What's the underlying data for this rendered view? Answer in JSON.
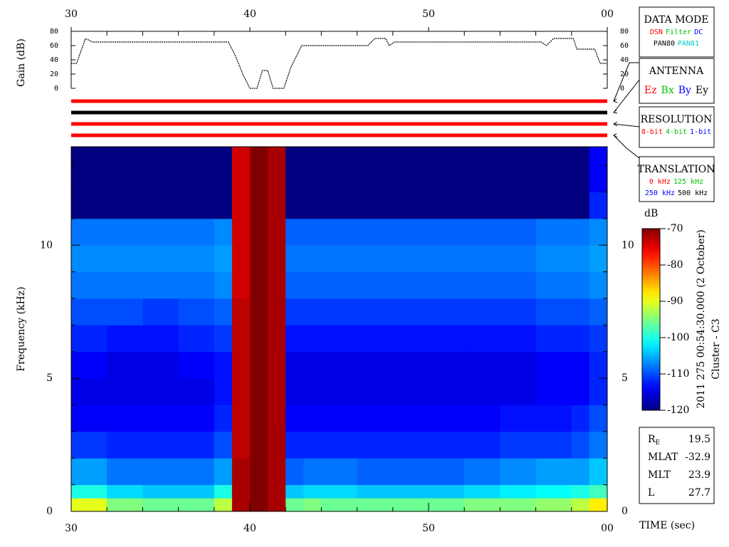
{
  "chart_data": [
    {
      "type": "line",
      "ylabel": "Gain (dB)",
      "color": "#000000",
      "x": [
        30,
        30.3,
        30.8,
        31.2,
        38.8,
        39.2,
        39.6,
        40.0,
        40.4,
        40.7,
        41.0,
        41.3,
        41.5,
        41.9,
        42.3,
        42.9,
        46.6,
        47.0,
        47.6,
        47.8,
        48.1,
        56.3,
        56.6,
        57.0,
        58.1,
        58.3,
        59.3,
        59.6,
        60
      ],
      "values": [
        35,
        35,
        70,
        65,
        65,
        45,
        20,
        0,
        0,
        25,
        25,
        0,
        0,
        0,
        30,
        60,
        60,
        70,
        70,
        60,
        65,
        65,
        60,
        70,
        70,
        55,
        55,
        35,
        35
      ],
      "xlim": [
        30,
        60
      ],
      "xticks": [
        30,
        40,
        50,
        {
          "value": 60,
          "label": "00"
        }
      ],
      "ylim": [
        0,
        80
      ],
      "yticks": [
        0,
        20,
        40,
        60,
        80
      ]
    },
    {
      "type": "heatmap",
      "xlabel": "TIME (sec)",
      "ylabel": "Frequency (kHz)",
      "xlim": [
        30,
        60
      ],
      "xticks": [
        30,
        40,
        50,
        {
          "value": 60,
          "label": "00"
        }
      ],
      "xminorticks": [
        32,
        34,
        36,
        38,
        42,
        44,
        46,
        48,
        52,
        54,
        56,
        58
      ],
      "ylim": [
        0,
        13.7
      ],
      "yticks": [
        0,
        5,
        10
      ],
      "yminorticks": [
        1,
        2,
        3,
        4,
        6,
        7,
        8,
        9,
        11,
        12,
        13
      ],
      "colorbar_label": "dB",
      "clim": [
        -120,
        -70
      ],
      "cticks": [
        -70,
        -80,
        -90,
        -100,
        -110,
        -120
      ],
      "x_edges": [
        30,
        32,
        34,
        36,
        38,
        39,
        40,
        41,
        42,
        43,
        44,
        46,
        48,
        50,
        52,
        54,
        56,
        58,
        59,
        60
      ],
      "y_edges": [
        0,
        0.5,
        1,
        2,
        3,
        4,
        5,
        6,
        7,
        8,
        9,
        10,
        11,
        12,
        13.7
      ],
      "z": [
        [
          -90,
          -95,
          -96,
          -96,
          -92,
          -72,
          -70,
          -72,
          -96,
          -95,
          -96,
          -96,
          -96,
          -96,
          -95,
          -95,
          -94,
          -92,
          -88
        ],
        [
          -100,
          -103,
          -104,
          -104,
          -100,
          -72,
          -70,
          -72,
          -104,
          -103,
          -103,
          -104,
          -104,
          -104,
          -103,
          -102,
          -101,
          -100,
          -98
        ],
        [
          -106,
          -108,
          -108,
          -108,
          -106,
          -72,
          -70,
          -72,
          -109,
          -108,
          -108,
          -109,
          -109,
          -109,
          -108,
          -107,
          -106,
          -106,
          -104
        ],
        [
          -111,
          -112,
          -112,
          -112,
          -110,
          -73,
          -70,
          -72,
          -112,
          -112,
          -112,
          -112,
          -112,
          -112,
          -112,
          -111,
          -111,
          -110,
          -108
        ],
        [
          -114,
          -114,
          -114,
          -114,
          -112,
          -73,
          -70,
          -72,
          -114,
          -114,
          -114,
          -114,
          -114,
          -114,
          -114,
          -113,
          -113,
          -112,
          -110
        ],
        [
          -115,
          -115,
          -115,
          -115,
          -113,
          -73,
          -70,
          -72,
          -115,
          -115,
          -115,
          -115,
          -115,
          -115,
          -115,
          -115,
          -114,
          -114,
          -112
        ],
        [
          -114,
          -115,
          -115,
          -114,
          -113,
          -73,
          -70,
          -72,
          -115,
          -115,
          -115,
          -115,
          -115,
          -115,
          -115,
          -115,
          -114,
          -114,
          -112
        ],
        [
          -112,
          -113,
          -113,
          -112,
          -111,
          -73,
          -70,
          -72,
          -113,
          -113,
          -113,
          -113,
          -113,
          -113,
          -113,
          -113,
          -112,
          -112,
          -111
        ],
        [
          -110,
          -110,
          -111,
          -110,
          -109,
          -73,
          -70,
          -72,
          -111,
          -111,
          -111,
          -111,
          -111,
          -111,
          -111,
          -111,
          -110,
          -110,
          -109
        ],
        [
          -108,
          -108,
          -108,
          -108,
          -107,
          -74,
          -70,
          -72,
          -109,
          -109,
          -109,
          -109,
          -109,
          -109,
          -109,
          -109,
          -108,
          -108,
          -107
        ],
        [
          -107,
          -107,
          -107,
          -107,
          -106,
          -74,
          -70,
          -72,
          -108,
          -108,
          -108,
          -108,
          -108,
          -108,
          -108,
          -108,
          -107,
          -107,
          -106
        ],
        [
          -108,
          -108,
          -108,
          -108,
          -107,
          -74,
          -70,
          -72,
          -109,
          -109,
          -109,
          -109,
          -109,
          -109,
          -109,
          -109,
          -108,
          -108,
          -107
        ],
        [
          -124,
          -124,
          -124,
          -124,
          -122,
          -74,
          -70,
          -72,
          -124,
          -124,
          -124,
          -124,
          -124,
          -124,
          -124,
          -124,
          -124,
          -122,
          -112
        ],
        [
          -125,
          -125,
          -125,
          -125,
          -123,
          -74,
          -70,
          -72,
          -125,
          -125,
          -125,
          -125,
          -125,
          -125,
          -125,
          -125,
          -125,
          -123,
          -114
        ]
      ]
    }
  ],
  "legend_panels": [
    {
      "title": "DATA MODE",
      "items": [
        {
          "text": "DSN",
          "color": "#ff0000"
        },
        {
          "text": "Filter",
          "color": "#00c000"
        },
        {
          "text": "DC",
          "color": "#0000ff"
        },
        {
          "text": "PAN80",
          "color": "#000000"
        },
        {
          "text": "PAN81",
          "color": "#00c8c8"
        }
      ]
    },
    {
      "title": "ANTENNA",
      "items": [
        {
          "text": "Ez",
          "color": "#ff0000"
        },
        {
          "text": "Bx",
          "color": "#00c000"
        },
        {
          "text": "By",
          "color": "#0000ff"
        },
        {
          "text": "Ey",
          "color": "#000000"
        }
      ]
    },
    {
      "title": "RESOLUTION",
      "items": [
        {
          "text": "8-bit",
          "color": "#ff0000"
        },
        {
          "text": "4-bit",
          "color": "#00c000"
        },
        {
          "text": "1-bit",
          "color": "#0000ff"
        }
      ]
    },
    {
      "title": "TRANSLATION",
      "items": [
        {
          "text": "0 kHz",
          "color": "#ff0000"
        },
        {
          "text": "125 kHz",
          "color": "#00c000"
        },
        {
          "text": "250 kHz",
          "color": "#0000ff"
        },
        {
          "text": "500 kHz",
          "color": "#000000"
        }
      ]
    }
  ],
  "date_label": "2011 275 00:54:30.000 (2 October)",
  "spacecraft": "Cluster - C3",
  "info": [
    {
      "label": "R",
      "sub": "E",
      "value": 19.5
    },
    {
      "label": "MLAT",
      "value": -32.9
    },
    {
      "label": "MLT",
      "value": 23.9
    },
    {
      "label": "L",
      "value": 27.7
    }
  ]
}
